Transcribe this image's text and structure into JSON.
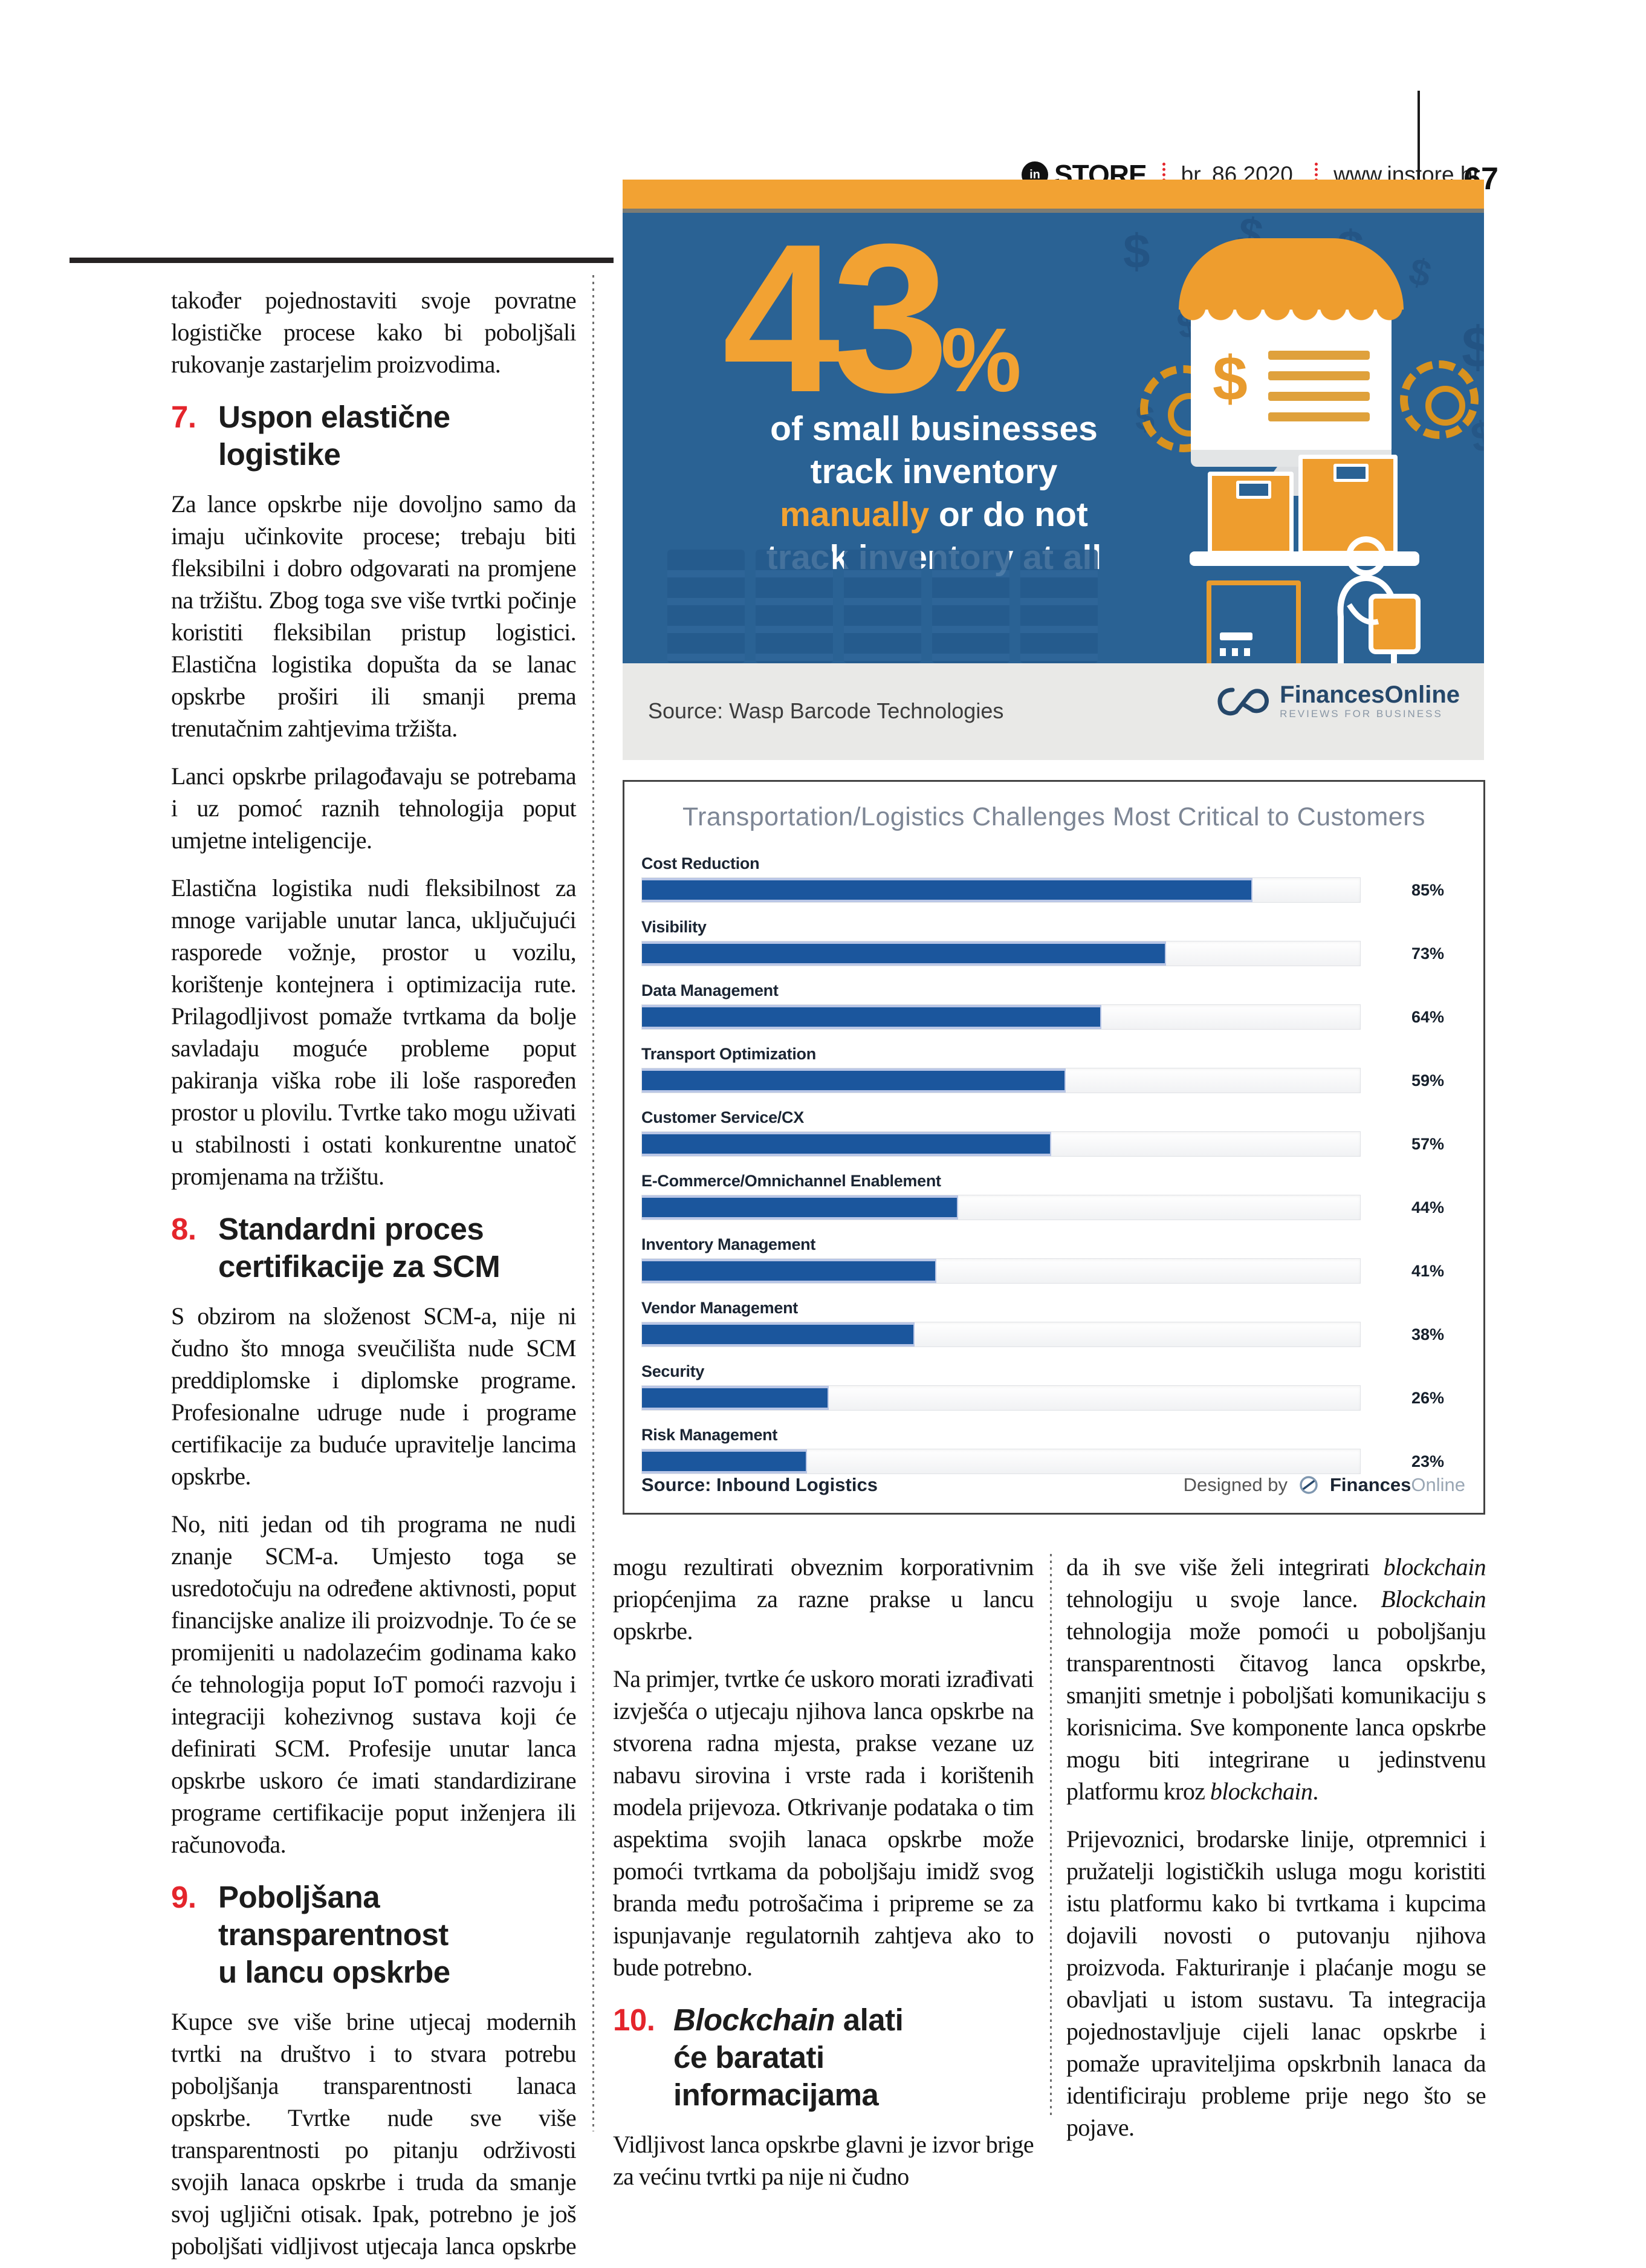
{
  "header": {
    "logo_circle_text": "in",
    "brand": "STORE",
    "issue": "br. 86 2020.",
    "site": "www.instore.hr",
    "page_number": "67"
  },
  "colors": {
    "accent_red": "#e4252c",
    "orange": "#f2a233",
    "infographic_blue": "#2a6294",
    "bar_blue": "#1b569d",
    "navy": "#1d3e5e"
  },
  "left_column": {
    "p1": "također pojednostaviti svoje povratne logističke procese kako bi poboljšali rukovanje zastarjelim proizvodima.",
    "h7": {
      "num": "7.",
      "title": "Uspon elastične logistike"
    },
    "p2": "Za lance opskrbe nije dovoljno samo da imaju učinkovite procese; trebaju biti fleksibilni i dobro odgovarati na promjene na tržištu. Zbog toga sve više tvrtki počinje koristiti fleksibilan pristup logistici. Elastična logistika dopušta da se lanac opskrbe proširi ili smanji prema trenutačnim zahtjevima tržišta.",
    "p3": "Lanci opskrbe prilagođavaju se potrebama i uz pomoć raznih tehnologija poput umjetne inteligencije.",
    "p4": "Elastična logistika nudi fleksibilnost za mnoge varijable unutar lanca, uključujući rasporede vožnje, prostor u vozilu, korištenje kontejnera i optimizacija rute. Prilagodljivost pomaže tvrtkama da bolje savladaju moguće probleme poput pakiranja viška robe ili loše raspoređen prostor u plovilu. Tvrtke tako mogu uživati u stabilnosti i ostati konkurentne unatoč promjenama na tržištu.",
    "h8": {
      "num": "8.",
      "line1": "Standardni proces",
      "line2": "certifikacije za SCM"
    },
    "p5": "S obzirom na složenost SCM-a, nije ni čudno što mnoga sveučilišta nude SCM preddiplomske i diplomske programe. Profesionalne udruge nude i programe certifikacije za buduće upravitelje lancima opskrbe.",
    "p6": "No, niti jedan od tih programa ne nudi znanje SCM-a. Umjesto toga se usredotočuju na određene aktivnosti, poput financijske analize ili proizvodnje. To će se promijeniti u nadolazećim godinama kako će tehnologija poput IoT pomoći razvoju i integraciji kohezivnog sustava koji će definirati SCM. Profesije unutar lanca opskrbe uskoro će imati standardizirane programe certifikacije poput inženjera ili računovođa.",
    "h9": {
      "num": "9.",
      "line1": "Poboljšana transparentnost",
      "line2": "u lancu opskrbe"
    },
    "p7": "Kupce sve više brine utjecaj modernih tvrtki na društvo i to stvara potrebu poboljšanja transparentnosti lanaca opskrbe. Tvrtke nude sve više transparentnosti po pitanju održivosti svojih lanaca opskrbe i truda da smanje svoj ugljični otisak. Ipak, potrebno je još poboljšati vidljivost utjecaja lanca opskrbe na druge aspekte društva. Promjenjiva priroda globalne trgovine i njenih korporativnih zahtjeva"
  },
  "infographic": {
    "stat_value": "43",
    "stat_unit": "%",
    "line1": "of small businesses",
    "line2": "track inventory",
    "line3_highlight": "manually",
    "line3_rest": " or do not",
    "line4": "track inventory at all",
    "dollar": "$",
    "monitor_dollar": "$",
    "source": "Source: Wasp Barcode Technologies",
    "brand_name": "FinancesOnline",
    "brand_tagline": "REVIEWS FOR BUSINESS"
  },
  "chart_data": {
    "type": "bar",
    "title": "Transportation/Logistics Challenges Most Critical to Customers",
    "categories": [
      "Cost Reduction",
      "Visibility",
      "Data Management",
      "Transport Optimization",
      "Customer Service/CX",
      "E-Commerce/Omnichannel Enablement",
      "Inventory Management",
      "Vendor Management",
      "Security",
      "Risk Management"
    ],
    "values": [
      85,
      73,
      64,
      59,
      57,
      44,
      41,
      38,
      26,
      23
    ],
    "unit": "%",
    "xlim": [
      0,
      100
    ],
    "orientation": "horizontal",
    "grid": false,
    "legend": false,
    "bar_color": "#1b569d",
    "source": "Source: Inbound Logistics",
    "credit_prefix": "Designed by",
    "credit_brand_bold": "Finances",
    "credit_brand_light": "Online"
  },
  "middle_column": {
    "p1": "mogu rezultirati obveznim korporativnim priopćenjima za razne prakse u lancu opskrbe.",
    "p2": "Na primjer, tvrtke će uskoro morati izrađivati izvješća o utjecaju njihova lanca opskrbe na stvorena radna mjesta, prakse vezane uz nabavu sirovina i vrste rada i korištenih modela prijevoza. Otkrivanje podataka o tim aspektima svojih lanaca opskrbe može pomoći tvrtkama da poboljšaju imidž svog branda među potrošačima i pripreme se za ispunjavanje regulatornih zahtjeva ako to bude potrebno.",
    "h10": {
      "num": "10.",
      "italic": "Blockchain",
      "rest": " alati",
      "line2": "će baratati informacijama"
    },
    "p3": "Vidljivost lanca opskrbe glavni je izvor brige za većinu tvrtki pa nije ni čudno"
  },
  "right_column": {
    "p1a": "da ih sve više želi integrirati ",
    "p1b": "blockchain",
    "p1c": " tehnologiju u svoje lance. ",
    "p1d": "Blockchain",
    "p1e": " tehnologija može pomoći u poboljšanju transparentnosti čitavog lanca opskrbe, smanjiti smetnje i poboljšati komunikaciju s korisnicima. Sve komponente lanca opskrbe mogu biti integrirane u jedinstvenu platformu kroz ",
    "p1f": "blockchain",
    "p1g": ".",
    "p2": "Prijevoznici, brodarske linije, otpremnici i pružatelji logističkih usluga mogu koristiti istu platformu kako bi tvrtkama i kupcima dojavili novosti o putovanju njihova proizvoda. Fakturiranje i plaćanje mogu se obavljati u istom sustavu. Ta integracija pojednostavljuje cijeli lanac opskrbe i pomaže upraviteljima opskrbnih lanaca da identificiraju probleme prije nego što se pojave."
  }
}
